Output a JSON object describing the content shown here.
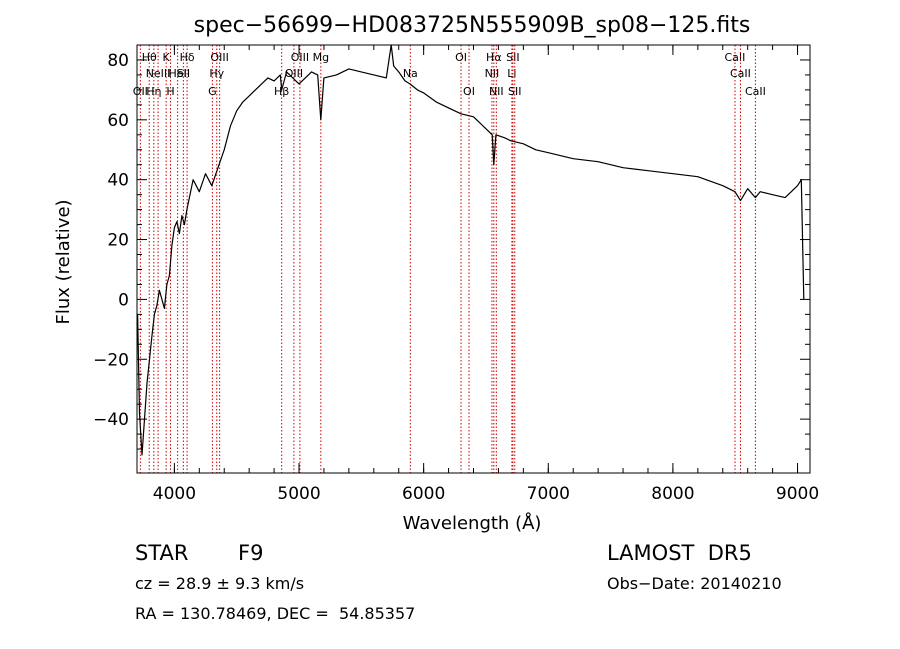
{
  "chart_data": {
    "type": "line",
    "title": "spec−56699−HD083725N555909B_sp08−125.fits",
    "xlabel": "Wavelength (Å)",
    "ylabel": "Flux (relative)",
    "xlim": [
      3700,
      9100
    ],
    "ylim": [
      -58,
      85
    ],
    "xticks": [
      4000,
      5000,
      6000,
      7000,
      8000,
      9000
    ],
    "yticks": [
      -40,
      -20,
      0,
      20,
      40,
      60,
      80
    ],
    "line_color": "#000000",
    "marker_color": "#cc0000",
    "series": [
      {
        "x": [
          3705,
          3720,
          3740,
          3760,
          3780,
          3800,
          3820,
          3840,
          3860,
          3880,
          3900,
          3920,
          3940,
          3960,
          3980,
          4000,
          4020,
          4040,
          4060,
          4080,
          4100,
          4150,
          4200,
          4250,
          4300,
          4350,
          4400,
          4450,
          4500,
          4550,
          4600,
          4650,
          4700,
          4750,
          4800,
          4850,
          4861,
          4900,
          4950,
          5000,
          5050,
          5100,
          5150,
          5175,
          5200,
          5300,
          5400,
          5500,
          5600,
          5700,
          5740,
          5760,
          5800,
          5850,
          5890,
          5950,
          6000,
          6100,
          6200,
          6300,
          6400,
          6500,
          6550,
          6563,
          6580,
          6650,
          6700,
          6800,
          6900,
          7000,
          7200,
          7400,
          7600,
          7800,
          8000,
          8200,
          8400,
          8498,
          8542,
          8600,
          8662,
          8700,
          8800,
          8900,
          8950,
          9000,
          9030,
          9050
        ],
        "y": [
          -5,
          -38,
          -52,
          -40,
          -28,
          -20,
          -12,
          -5,
          -2,
          3,
          0,
          -3,
          5,
          8,
          18,
          24,
          26,
          22,
          28,
          25,
          30,
          40,
          36,
          42,
          38,
          44,
          50,
          58,
          63,
          66,
          68,
          70,
          72,
          74,
          73,
          75,
          70,
          76,
          74,
          72,
          74,
          76,
          75,
          60,
          74,
          75,
          77,
          76,
          75,
          74,
          85,
          78,
          76,
          73,
          72,
          70,
          69,
          66,
          64,
          62,
          61,
          57,
          55,
          45,
          55,
          54,
          53,
          52,
          50,
          49,
          47,
          46,
          44,
          43,
          42,
          41,
          38,
          36,
          33,
          37,
          34,
          36,
          35,
          34,
          36,
          38,
          40,
          0
        ]
      }
    ],
    "lines": [
      {
        "wl": 3727,
        "label": "OII",
        "row": 3
      },
      {
        "wl": 3798,
        "label": "Hθ",
        "row": 1
      },
      {
        "wl": 3835,
        "label": "Hη",
        "row": 3
      },
      {
        "wl": 3869,
        "label": "NeIII",
        "row": 2
      },
      {
        "wl": 3934,
        "label": "K",
        "row": 1
      },
      {
        "wl": 3969,
        "label": "H",
        "row": 3
      },
      {
        "wl": 4026,
        "label": "HeI",
        "row": 2
      },
      {
        "wl": 4072,
        "label": "SII",
        "row": 2
      },
      {
        "wl": 4102,
        "label": "Hδ",
        "row": 1
      },
      {
        "wl": 4305,
        "label": "G",
        "row": 3
      },
      {
        "wl": 4340,
        "label": "Hγ",
        "row": 2
      },
      {
        "wl": 4363,
        "label": "OIII",
        "row": 1
      },
      {
        "wl": 4861,
        "label": "Hβ",
        "row": 3
      },
      {
        "wl": 4959,
        "label": "OIII",
        "row": 2
      },
      {
        "wl": 5007,
        "label": "OIII",
        "row": 1
      },
      {
        "wl": 5175,
        "label": "Mg",
        "row": 1
      },
      {
        "wl": 5893,
        "label": "Na",
        "row": 2
      },
      {
        "wl": 6300,
        "label": "OI",
        "row": 1
      },
      {
        "wl": 6364,
        "label": "OI",
        "row": 3
      },
      {
        "wl": 6548,
        "label": "NII",
        "row": 2
      },
      {
        "wl": 6563,
        "label": "Hα",
        "row": 1
      },
      {
        "wl": 6583,
        "label": "NII",
        "row": 3
      },
      {
        "wl": 6708,
        "label": "Li",
        "row": 2
      },
      {
        "wl": 6716,
        "label": "SII",
        "row": 1
      },
      {
        "wl": 6731,
        "label": "SII",
        "row": 3
      },
      {
        "wl": 8498,
        "label": "CaII",
        "row": 1
      },
      {
        "wl": 8542,
        "label": "CaII",
        "row": 2
      },
      {
        "wl": 8662,
        "label": "CaII",
        "row": 3
      }
    ]
  },
  "info": {
    "object_class": "STAR",
    "subclass": "F9",
    "survey": "LAMOST  DR5",
    "redshift_line": "cz = 28.9 ± 9.3 km/s",
    "obs_date": "Obs−Date: 20140210",
    "coords": "RA = 130.78469, DEC =  54.85357"
  }
}
